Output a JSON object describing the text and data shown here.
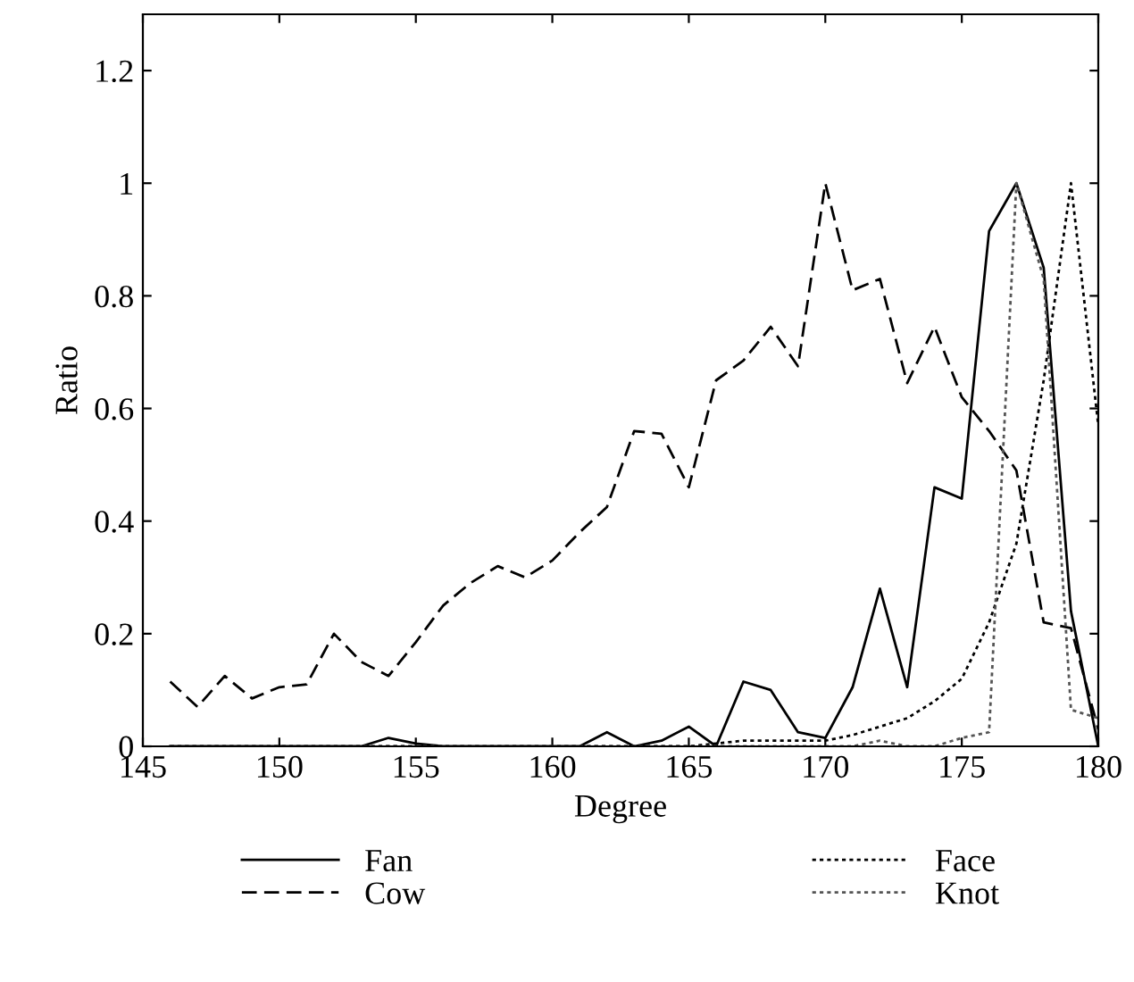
{
  "chart_data": {
    "type": "line",
    "xlabel": "Degree",
    "ylabel": "Ratio",
    "x": [
      146,
      147,
      148,
      149,
      150,
      151,
      152,
      153,
      154,
      155,
      156,
      157,
      158,
      159,
      160,
      161,
      162,
      163,
      164,
      165,
      166,
      167,
      168,
      169,
      170,
      171,
      172,
      173,
      174,
      175,
      176,
      177,
      178,
      179,
      180
    ],
    "series": [
      {
        "name": "Fan",
        "color": "#000000",
        "line_style": "solid",
        "values": [
          0,
          0,
          0,
          0,
          0,
          0,
          0,
          0,
          0.015,
          0.005,
          0,
          0,
          0,
          0,
          0,
          0,
          0.025,
          0,
          0.01,
          0.035,
          0,
          0.115,
          0.1,
          0.025,
          0.015,
          0.105,
          0.28,
          0.105,
          0.46,
          0.44,
          0.915,
          1.0,
          0.85,
          0.24,
          0
        ]
      },
      {
        "name": "Cow",
        "color": "#000000",
        "line_style": "dashed",
        "values": [
          0.115,
          0.07,
          0.125,
          0.085,
          0.105,
          0.11,
          0.2,
          0.15,
          0.125,
          0.185,
          0.25,
          0.29,
          0.32,
          0.3,
          0.33,
          0.38,
          0.425,
          0.56,
          0.555,
          0.46,
          0.65,
          0.685,
          0.745,
          0.675,
          1.0,
          0.81,
          0.83,
          0.645,
          0.745,
          0.62,
          0.56,
          0.49,
          0.22,
          0.21,
          0.03
        ]
      },
      {
        "name": "Face",
        "color": "#000000",
        "line_style": "dotted",
        "values": [
          0,
          0,
          0,
          0,
          0,
          0,
          0,
          0,
          0,
          0,
          0,
          0,
          0,
          0,
          0,
          0,
          0,
          0,
          0,
          0,
          0.005,
          0.01,
          0.01,
          0.01,
          0.01,
          0.02,
          0.035,
          0.05,
          0.08,
          0.12,
          0.22,
          0.36,
          0.65,
          1.0,
          0.57
        ]
      },
      {
        "name": "Knot",
        "color": "#555555",
        "line_style": "dotted",
        "values": [
          0,
          0,
          0,
          0,
          0,
          0,
          0,
          0,
          0,
          0,
          0,
          0,
          0,
          0,
          0,
          0,
          0,
          0,
          0,
          0,
          0,
          0,
          0,
          0,
          0,
          0,
          0.01,
          0,
          0,
          0.015,
          0.025,
          1.0,
          0.83,
          0.065,
          0.05
        ]
      }
    ],
    "xlim": [
      145,
      180
    ],
    "xticks": [
      145,
      150,
      155,
      160,
      165,
      170,
      175,
      180
    ],
    "ylim": [
      0,
      1.3
    ],
    "yticks": [
      0,
      0.2,
      0.4,
      0.6,
      0.8,
      1,
      1.2
    ],
    "grid": false,
    "legend": "bottom"
  }
}
